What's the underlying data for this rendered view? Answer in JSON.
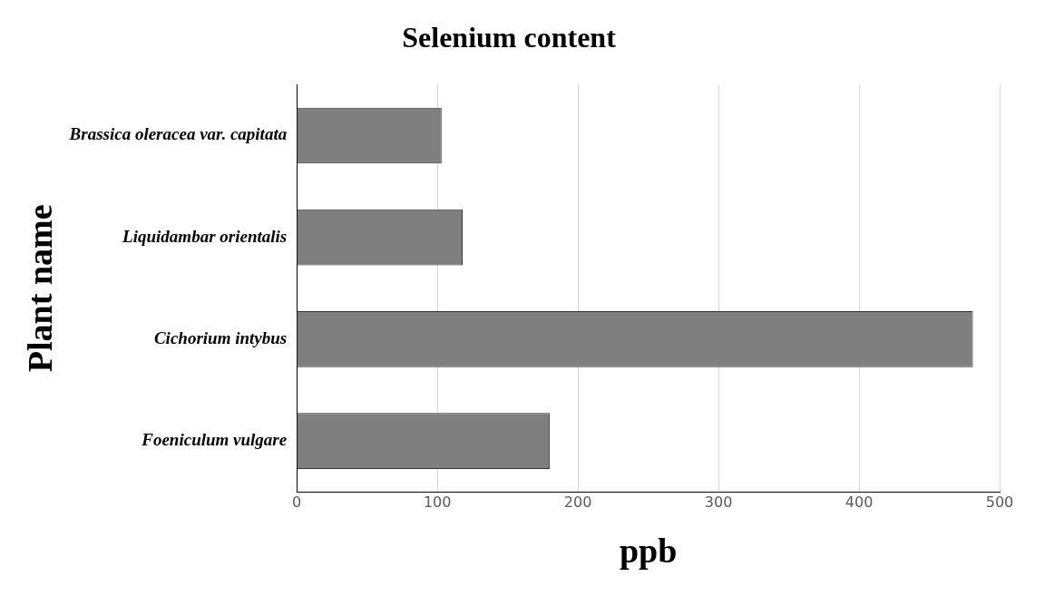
{
  "chart_data": {
    "type": "bar",
    "orientation": "horizontal",
    "title": "Selenium content",
    "xlabel": "ppb",
    "ylabel": "Plant name",
    "categories": [
      "Brassica oleracea var. capitata",
      "Liquidambar orientalis",
      "Cichorium intybus",
      "Foeniculum vulgare"
    ],
    "values": [
      103,
      118,
      481,
      180
    ],
    "color": "#7f7f7f",
    "xlim": [
      0,
      500
    ],
    "xticks": [
      0,
      100,
      200,
      300,
      400,
      500
    ],
    "grid": "x",
    "legend": false
  }
}
